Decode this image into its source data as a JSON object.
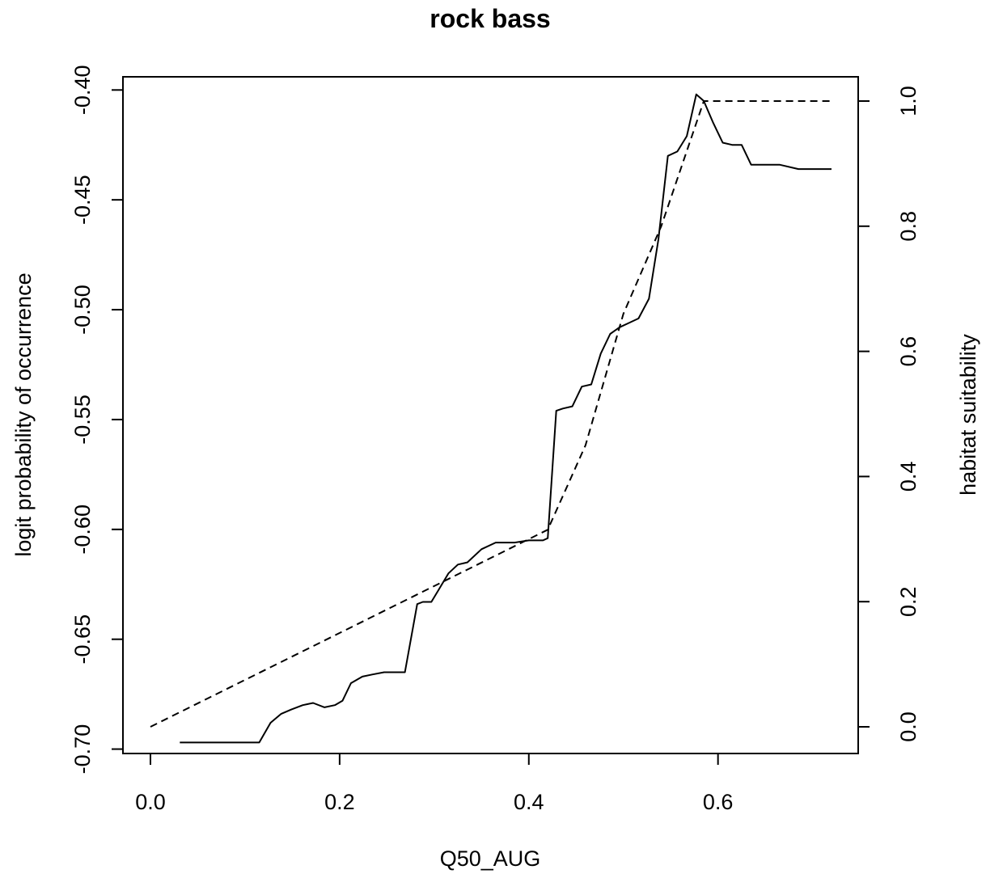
{
  "chart_data": {
    "type": "line",
    "title": "rock bass",
    "xlabel": "Q50_AUG",
    "ylabel": "logit probability of occurrence",
    "y2label": "habitat suitability",
    "xlim": [
      0.0,
      0.72
    ],
    "ylim": [
      -0.702,
      -0.394
    ],
    "y2lim": [
      0.0,
      1.0
    ],
    "x_ticks": [
      "0.0",
      "0.2",
      "0.4",
      "0.6"
    ],
    "y_ticks": [
      "-0.40",
      "-0.45",
      "-0.50",
      "-0.55",
      "-0.60",
      "-0.65",
      "-0.70"
    ],
    "y2_ticks": [
      "0.0",
      "0.2",
      "0.4",
      "0.6",
      "0.8",
      "1.0"
    ],
    "grid": false,
    "series": [
      {
        "axis": "left",
        "style": "solid",
        "x": [
          0.031,
          0.115,
          0.127,
          0.138,
          0.149,
          0.161,
          0.172,
          0.184,
          0.195,
          0.203,
          0.212,
          0.224,
          0.235,
          0.247,
          0.258,
          0.269,
          0.282,
          0.288,
          0.297,
          0.304,
          0.315,
          0.325,
          0.335,
          0.35,
          0.365,
          0.385,
          0.4,
          0.415,
          0.42,
          0.429,
          0.436,
          0.446,
          0.456,
          0.466,
          0.476,
          0.486,
          0.496,
          0.506,
          0.516,
          0.527,
          0.537,
          0.547,
          0.557,
          0.567,
          0.577,
          0.585,
          0.595,
          0.605,
          0.615,
          0.625,
          0.635,
          0.645,
          0.665,
          0.685,
          0.705,
          0.72
        ],
        "y": [
          -0.697,
          -0.697,
          -0.688,
          -0.684,
          -0.682,
          -0.68,
          -0.679,
          -0.681,
          -0.68,
          -0.678,
          -0.67,
          -0.667,
          -0.666,
          -0.665,
          -0.665,
          -0.665,
          -0.634,
          -0.633,
          -0.633,
          -0.628,
          -0.62,
          -0.616,
          -0.615,
          -0.609,
          -0.606,
          -0.606,
          -0.605,
          -0.605,
          -0.604,
          -0.546,
          -0.545,
          -0.544,
          -0.535,
          -0.534,
          -0.52,
          -0.511,
          -0.508,
          -0.506,
          -0.504,
          -0.495,
          -0.468,
          -0.43,
          -0.428,
          -0.421,
          -0.402,
          -0.405,
          -0.415,
          -0.424,
          -0.425,
          -0.425,
          -0.434,
          -0.434,
          -0.434,
          -0.436,
          -0.436,
          -0.436
        ]
      },
      {
        "axis": "right",
        "style": "dashed",
        "x": [
          0.0,
          0.42,
          0.46,
          0.5,
          0.54,
          0.585,
          0.72
        ],
        "y": [
          0.0,
          0.315,
          0.45,
          0.66,
          0.8,
          1.0,
          1.0
        ]
      }
    ]
  }
}
